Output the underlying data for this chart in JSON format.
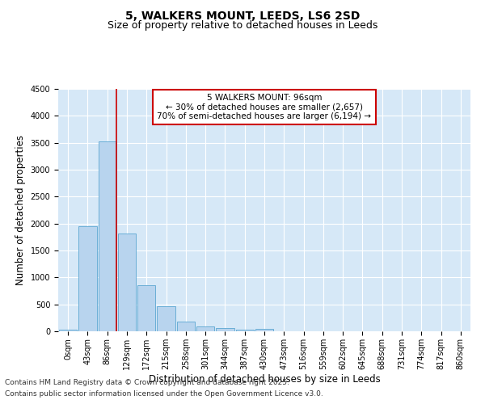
{
  "title_line1": "5, WALKERS MOUNT, LEEDS, LS6 2SD",
  "title_line2": "Size of property relative to detached houses in Leeds",
  "xlabel": "Distribution of detached houses by size in Leeds",
  "ylabel": "Number of detached properties",
  "categories": [
    "0sqm",
    "43sqm",
    "86sqm",
    "129sqm",
    "172sqm",
    "215sqm",
    "258sqm",
    "301sqm",
    "344sqm",
    "387sqm",
    "430sqm",
    "473sqm",
    "516sqm",
    "559sqm",
    "602sqm",
    "645sqm",
    "688sqm",
    "731sqm",
    "774sqm",
    "817sqm",
    "860sqm"
  ],
  "values": [
    30,
    1950,
    3530,
    1810,
    860,
    460,
    185,
    95,
    65,
    35,
    50,
    0,
    0,
    0,
    0,
    0,
    0,
    0,
    0,
    0,
    0
  ],
  "bar_color": "#b8d4ee",
  "bar_edge_color": "#6aaed6",
  "vline_x_index": 2,
  "vline_color": "#cc0000",
  "annotation_line1": "5 WALKERS MOUNT: 96sqm",
  "annotation_line2": "← 30% of detached houses are smaller (2,657)",
  "annotation_line3": "70% of semi-detached houses are larger (6,194) →",
  "annotation_box_edgecolor": "#cc0000",
  "ylim": [
    0,
    4500
  ],
  "yticks": [
    0,
    500,
    1000,
    1500,
    2000,
    2500,
    3000,
    3500,
    4000,
    4500
  ],
  "fig_bg_color": "#ffffff",
  "plot_bg_color": "#d6e8f7",
  "grid_color": "#ffffff",
  "footer_line1": "Contains HM Land Registry data © Crown copyright and database right 2025.",
  "footer_line2": "Contains public sector information licensed under the Open Government Licence v3.0.",
  "title_fontsize": 10,
  "subtitle_fontsize": 9,
  "axis_label_fontsize": 8.5,
  "tick_fontsize": 7,
  "annotation_fontsize": 7.5,
  "footer_fontsize": 6.5
}
